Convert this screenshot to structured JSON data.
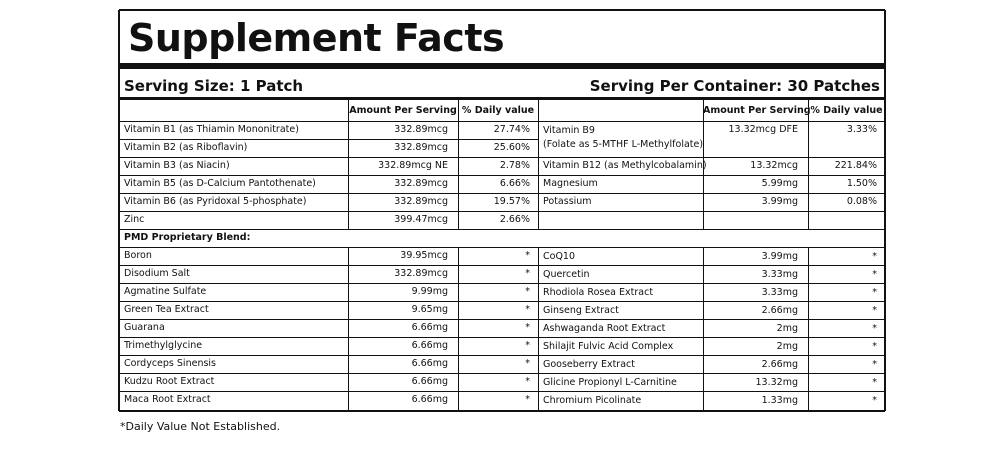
{
  "title": "Supplement Facts",
  "serving_size": "Serving Size: 1 Patch",
  "servings_per_container": "Serving Per Container: 30 Patches",
  "table": {
    "header": [
      "Amount Per Serving",
      "% Daily value"
    ],
    "left_rows": [
      {
        "name": "Vitamin B1 (as Thiamin Mononitrate)",
        "amount": "332.89mcg",
        "dv": "27.74%"
      },
      {
        "name": "Vitamin B2 (as Riboflavin)",
        "amount": "332.89mcg",
        "dv": "25.60%"
      },
      {
        "name": "Vitamin B3 (as Niacin)",
        "amount": "332.89mcg NE",
        "dv": "2.78%"
      },
      {
        "name": "Vitamin B5 (as D-Calcium Pantothenate)",
        "amount": "332.89mcg",
        "dv": "6.66%"
      },
      {
        "name": "Vitamin B6 (as Pyridoxal 5-phosphate)",
        "amount": "332.89mcg",
        "dv": "19.57%"
      },
      {
        "name": "Zinc",
        "amount": "399.47mcg",
        "dv": "2.66%"
      }
    ],
    "right_rows": [
      {
        "name": "Vitamin B9",
        "detail": "(Folate as 5-MTHF L-Methylfolate)",
        "amount": "13.32mcg DFE",
        "dv": "3.33%"
      },
      {
        "name": "Vitamin B12 (as Methylcobalamin)",
        "amount": "13.32mcg",
        "dv": "221.84%"
      },
      {
        "name": "Magnesium",
        "amount": "5.99mg",
        "dv": "1.50%"
      },
      {
        "name": "Potassium",
        "amount": "3.99mg",
        "dv": "0.08%"
      }
    ],
    "blend_title": "PMD Proprietary Blend:",
    "blend_left": [
      {
        "name": "Boron",
        "amount": "39.95mcg",
        "dv": "*"
      },
      {
        "name": "Disodium Salt",
        "amount": "332.89mcg",
        "dv": "*"
      },
      {
        "name": "Agmatine Sulfate",
        "amount": "9.99mg",
        "dv": "*"
      },
      {
        "name": "Green Tea Extract",
        "amount": "9.65mg",
        "dv": "*"
      },
      {
        "name": "Guarana",
        "amount": "6.66mg",
        "dv": "*"
      },
      {
        "name": "Trimethylglycine",
        "amount": "6.66mg",
        "dv": "*"
      },
      {
        "name": "Cordyceps Sinensis",
        "amount": "6.66mg",
        "dv": "*"
      },
      {
        "name": "Kudzu Root Extract",
        "amount": "6.66mg",
        "dv": "*"
      },
      {
        "name": "Maca Root Extract",
        "amount": "6.66mg",
        "dv": "*"
      }
    ],
    "blend_right": [
      {
        "name": "CoQ10",
        "amount": "3.99mg",
        "dv": "*"
      },
      {
        "name": "Quercetin",
        "amount": "3.33mg",
        "dv": "*"
      },
      {
        "name": "Rhodiola Rosea Extract",
        "amount": "3.33mg",
        "dv": "*"
      },
      {
        "name": "Ginseng Extract",
        "amount": "2.66mg",
        "dv": "*"
      },
      {
        "name": "Ashwaganda Root Extract",
        "amount": "2mg",
        "dv": "*"
      },
      {
        "name": "Shilajit Fulvic Acid Complex",
        "amount": "2mg",
        "dv": "*"
      },
      {
        "name": "Gooseberry Extract",
        "amount": "2.66mg",
        "dv": "*"
      },
      {
        "name": "Glicine Propionyl L-Carnitine",
        "amount": "13.32mg",
        "dv": "*"
      },
      {
        "name": "Chromium Picolinate",
        "amount": "1.33mg",
        "dv": "*"
      }
    ]
  },
  "footnote": "*Daily Value Not Established."
}
